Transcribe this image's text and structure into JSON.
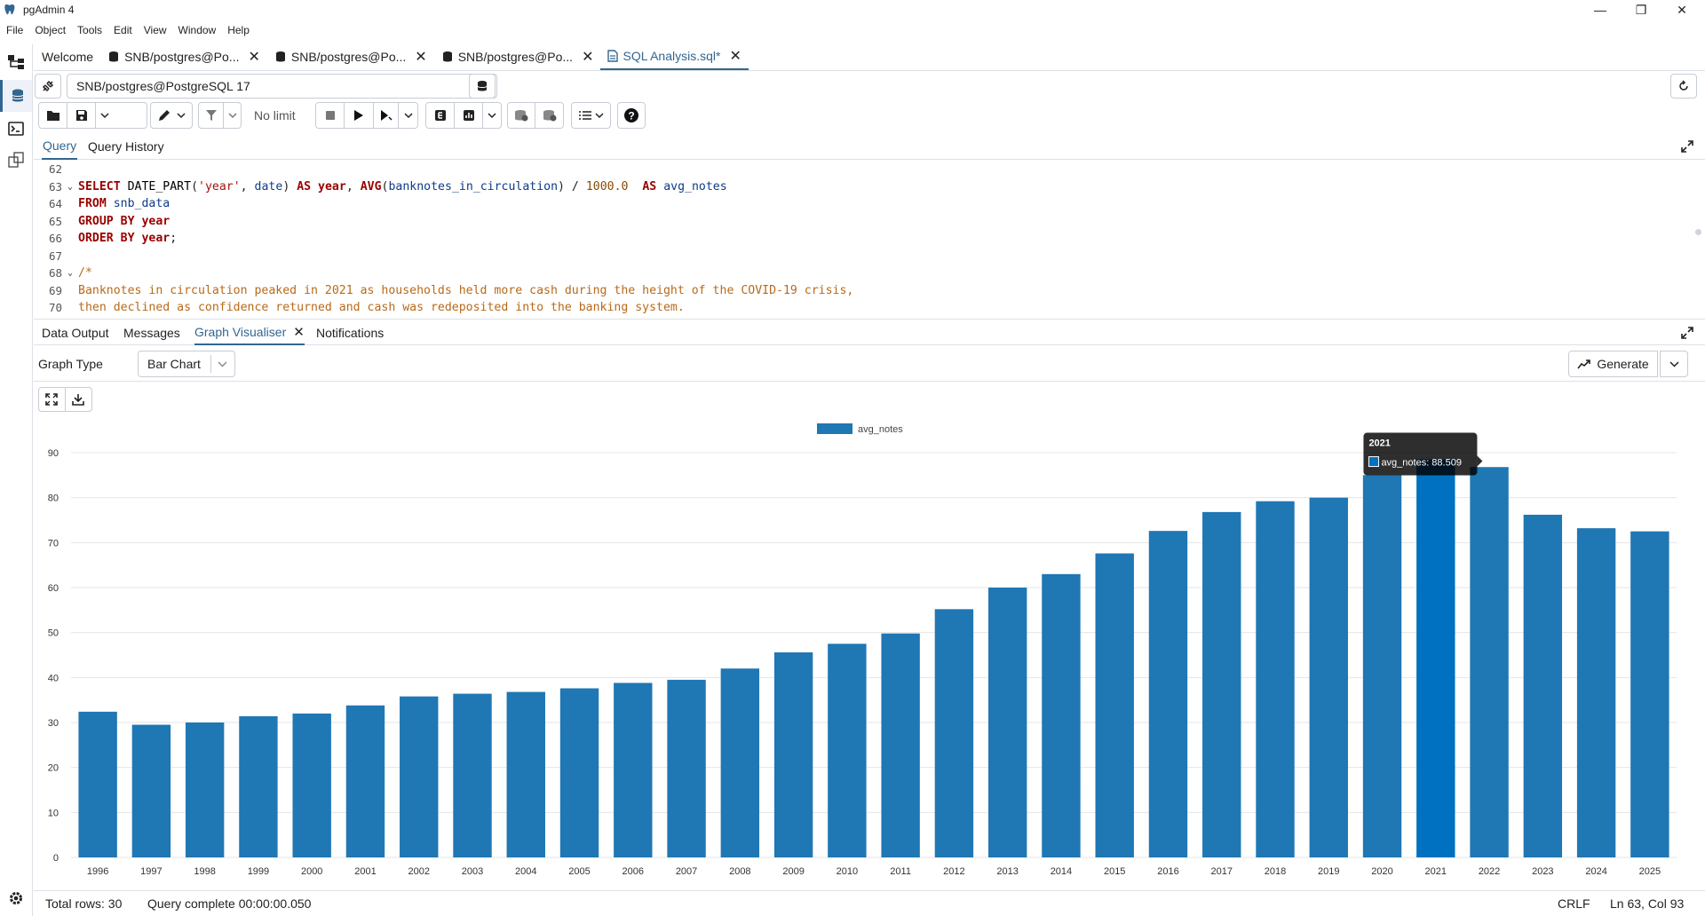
{
  "window": {
    "title": "pgAdmin 4"
  },
  "menu": [
    "File",
    "Object",
    "Tools",
    "Edit",
    "View",
    "Window",
    "Help"
  ],
  "tabs": [
    {
      "label": "Welcome",
      "closable": false
    },
    {
      "label": "SNB/postgres@Po...",
      "closable": true
    },
    {
      "label": "SNB/postgres@Po...",
      "closable": true
    },
    {
      "label": "SNB/postgres@Po...",
      "closable": true
    },
    {
      "label": "SQL Analysis.sql*",
      "closable": true,
      "active": true
    }
  ],
  "connection": {
    "label": "SNB/postgres@PostgreSQL 17"
  },
  "toolbar": {
    "limit_label": "No limit"
  },
  "query_tabs": {
    "query": "Query",
    "history": "Query History"
  },
  "editor": {
    "lines": [
      {
        "num": "62",
        "fold": ""
      },
      {
        "num": "63",
        "fold": "v"
      },
      {
        "num": "64",
        "fold": ""
      },
      {
        "num": "65",
        "fold": ""
      },
      {
        "num": "66",
        "fold": ""
      },
      {
        "num": "67",
        "fold": ""
      },
      {
        "num": "68",
        "fold": "v"
      },
      {
        "num": "69",
        "fold": ""
      },
      {
        "num": "70",
        "fold": ""
      }
    ],
    "code": {
      "l63": [
        "SELECT",
        "DATE_PART",
        "(",
        "'year'",
        ", ",
        "date",
        ") ",
        "AS",
        " ",
        "year",
        ", ",
        "AVG",
        "(",
        "banknotes_in_circulation",
        ") / ",
        "1000.0",
        "  ",
        "AS",
        " ",
        "avg_notes"
      ],
      "l64": [
        "FROM",
        " ",
        "snb_data"
      ],
      "l65": [
        "GROUP BY",
        " ",
        "year"
      ],
      "l66": [
        "ORDER BY",
        " ",
        "year",
        ";"
      ],
      "l68": "/*",
      "l69": "Banknotes in circulation peaked in 2021 as households held more cash during the height of the COVID-19 crisis,",
      "l70": "then declined as confidence returned and cash was redeposited into the banking system."
    }
  },
  "result_tabs": {
    "data_output": "Data Output",
    "messages": "Messages",
    "graph": "Graph Visualiser",
    "notifications": "Notifications"
  },
  "graph": {
    "type_label": "Graph Type",
    "type_value": "Bar Chart",
    "generate_label": "Generate"
  },
  "chart_data": {
    "type": "bar",
    "categories": [
      "1996",
      "1997",
      "1998",
      "1999",
      "2000",
      "2001",
      "2002",
      "2003",
      "2004",
      "2005",
      "2006",
      "2007",
      "2008",
      "2009",
      "2010",
      "2011",
      "2012",
      "2013",
      "2014",
      "2015",
      "2016",
      "2017",
      "2018",
      "2019",
      "2020",
      "2021",
      "2022",
      "2023",
      "2024",
      "2025"
    ],
    "series": [
      {
        "name": "avg_notes",
        "values": [
          32.4,
          29.5,
          30.0,
          31.4,
          32.0,
          33.8,
          35.8,
          36.4,
          36.8,
          37.6,
          38.8,
          39.5,
          42.0,
          45.6,
          47.5,
          49.8,
          55.2,
          60.0,
          63.0,
          67.6,
          72.6,
          76.8,
          79.2,
          80.0,
          85.0,
          88.509,
          86.8,
          76.2,
          73.2,
          72.5
        ]
      }
    ],
    "yticks": [
      0,
      10,
      20,
      30,
      40,
      50,
      60,
      70,
      80,
      90
    ],
    "ylim": [
      0,
      90
    ],
    "legend": "top-center",
    "grid": true,
    "highlight_color": "#0070c0",
    "bar_color": "#1f77b4",
    "tooltip": {
      "title": "2021",
      "label": "avg_notes: 88.509"
    }
  },
  "status": {
    "rows": "Total rows: 30",
    "query": "Query complete 00:00:00.050",
    "eol": "CRLF",
    "position": "Ln 63, Col 93"
  }
}
